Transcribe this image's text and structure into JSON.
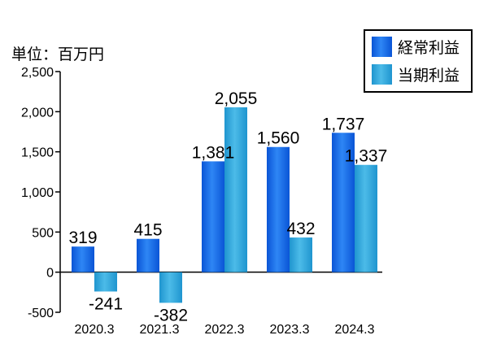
{
  "chart_data": {
    "type": "bar",
    "unit_label": "単位：百万円",
    "categories": [
      "2020.3",
      "2021.3",
      "2022.3",
      "2023.3",
      "2024.3"
    ],
    "series": [
      {
        "name": "経常利益",
        "values": [
          319,
          415,
          1381,
          1560,
          1737
        ],
        "labels": [
          "319",
          "415",
          "1,381",
          "1,560",
          "1,737"
        ],
        "color": "#1a6fe6"
      },
      {
        "name": "当期利益",
        "values": [
          -241,
          -382,
          2055,
          432,
          1337
        ],
        "labels": [
          "-241",
          "-382",
          "2,055",
          "432",
          "1,337"
        ],
        "color": "#2ea3d8"
      }
    ],
    "ylim": [
      -500,
      2500
    ],
    "yticks": [
      2500,
      2000,
      1500,
      1000,
      500,
      0,
      -500
    ],
    "ytick_labels": [
      "2,500",
      "2,000",
      "1,500",
      "1,000",
      "500",
      "0",
      "-500"
    ],
    "legend_position": "top-right",
    "grid": false
  }
}
